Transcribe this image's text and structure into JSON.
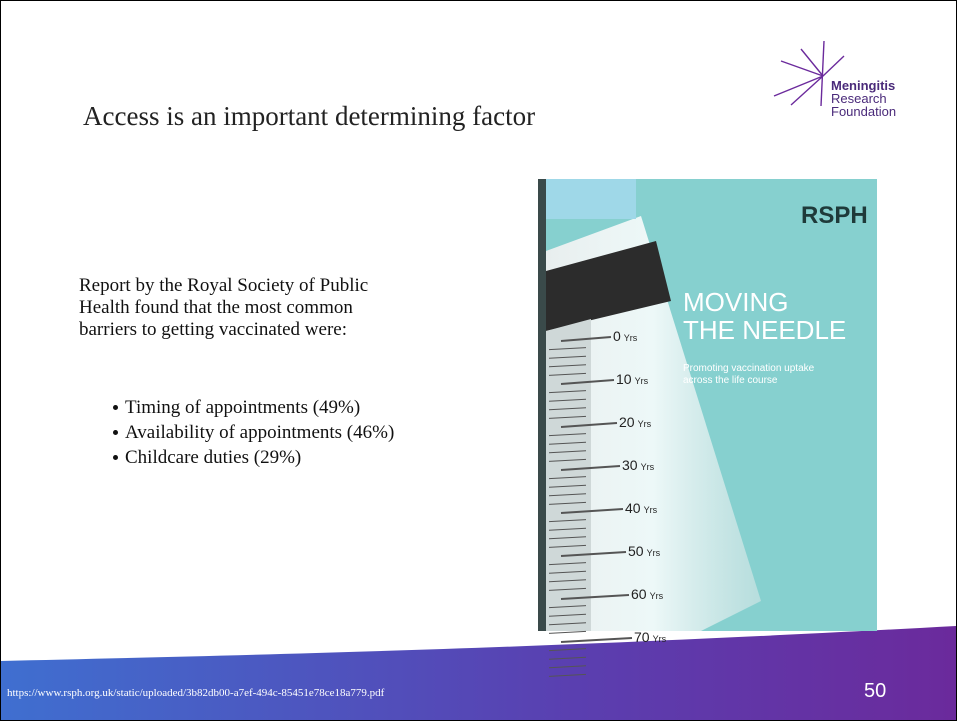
{
  "slide": {
    "title": "Access is an important determining factor",
    "logo": {
      "line1": "Meningitis",
      "line2": "Research",
      "line3": "Foundation"
    },
    "body": {
      "intro": [
        "Report by the Royal Society of Public",
        "Health found that the most common",
        "barriers to getting vaccinated were:"
      ],
      "bullets": [
        "Timing of appointments (49%)",
        "Availability of appointments (46%)",
        "Childcare duties (29%)"
      ]
    },
    "cover": {
      "brand": "RSPH",
      "title_line1": "MOVING",
      "title_line2": "THE NEEDLE",
      "subtitle": [
        "Promoting vaccination uptake",
        "across the life course"
      ],
      "scale": [
        "0",
        "10",
        "20",
        "30",
        "40",
        "50",
        "60",
        "70"
      ],
      "scale_unit": "Yrs"
    },
    "footer": {
      "url": "https://www.rsph.org.uk/static/uploaded/3b82db00-a7ef-494c-85451e78ce18a779.pdf",
      "page_number": "50"
    }
  }
}
